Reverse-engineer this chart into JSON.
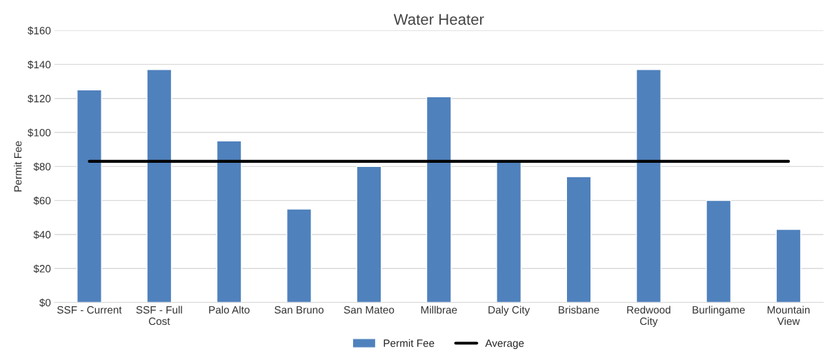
{
  "chart_data": {
    "type": "bar",
    "title": "Water Heater",
    "ylabel": "Permit Fee",
    "categories": [
      "SSF - Current",
      "SSF - Full\nCost",
      "Palo Alto",
      "San Bruno",
      "San Mateo",
      "Millbrae",
      "Daly City",
      "Brisbane",
      "Redwood\nCity",
      "Burlingame",
      "Mountain\nView"
    ],
    "series": [
      {
        "name": "Permit Fee",
        "color": "#4f81bd",
        "values": [
          125,
          137,
          95,
          55,
          80,
          121,
          83,
          74,
          137,
          60,
          43
        ]
      },
      {
        "name": "Average",
        "type": "line",
        "color": "#000000",
        "values": [
          83,
          83,
          83,
          83,
          83,
          83,
          83,
          83,
          83,
          83,
          83
        ]
      }
    ],
    "ylim": [
      0,
      160
    ],
    "yticks": [
      {
        "value": 0,
        "label": "$0"
      },
      {
        "value": 20,
        "label": "$20"
      },
      {
        "value": 40,
        "label": "$40"
      },
      {
        "value": 60,
        "label": "$60"
      },
      {
        "value": 80,
        "label": "$80"
      },
      {
        "value": 100,
        "label": "$100"
      },
      {
        "value": 120,
        "label": "$120"
      },
      {
        "value": 140,
        "label": "$140"
      },
      {
        "value": 160,
        "label": "$160"
      }
    ],
    "grid": "y",
    "legend": "bottom"
  }
}
